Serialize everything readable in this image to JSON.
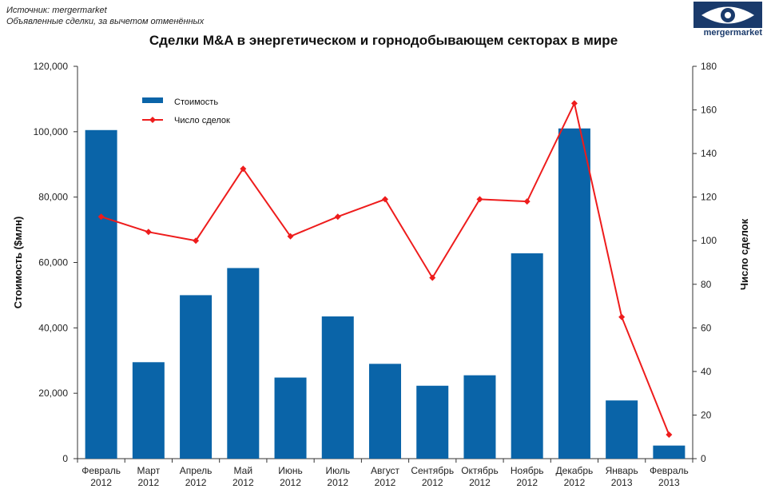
{
  "source": {
    "line1": "Источник: mergermarket",
    "line2": "Объявленные сделки, за вычетом отменённых"
  },
  "logo": {
    "text": "mergermarket",
    "icon": "eye-logo-icon"
  },
  "colors": {
    "bar": "#0a64a8",
    "line": "#ee1c1c",
    "logo": "#1a3a6b"
  },
  "chart_data": {
    "type": "bar",
    "title": "Сделки M&A в энергетическом и горнодобывающем секторах в мире",
    "ylabel": "Стоимость ($млн)",
    "y2label": "Число сделок",
    "ylim": [
      0,
      120000
    ],
    "y2lim": [
      0,
      180
    ],
    "yticks": [
      "0",
      "20,000",
      "40,000",
      "60,000",
      "80,000",
      "100,000",
      "120,000"
    ],
    "y2ticks": [
      "0",
      "20",
      "40",
      "60",
      "80",
      "100",
      "120",
      "140",
      "160",
      "180"
    ],
    "legend_position": "top-left",
    "categories": [
      [
        "Февраль",
        "2012"
      ],
      [
        "Март",
        "2012"
      ],
      [
        "Апрель",
        "2012"
      ],
      [
        "Май",
        "2012"
      ],
      [
        "Июнь",
        "2012"
      ],
      [
        "Июль",
        "2012"
      ],
      [
        "Август",
        "2012"
      ],
      [
        "Сентябрь",
        "2012"
      ],
      [
        "Октябрь",
        "2012"
      ],
      [
        "Ноябрь",
        "2012"
      ],
      [
        "Декабрь",
        "2012"
      ],
      [
        "Январь",
        "2013"
      ],
      [
        "Февраль",
        "2013"
      ]
    ],
    "series": [
      {
        "name": "Стоимость",
        "type": "bar",
        "axis": "left",
        "values": [
          100500,
          29500,
          50000,
          58300,
          24800,
          43500,
          29000,
          22300,
          25500,
          62800,
          101000,
          17800,
          4000
        ]
      },
      {
        "name": "Число сделок",
        "type": "line",
        "axis": "right",
        "values": [
          111,
          104,
          100,
          133,
          102,
          111,
          119,
          83,
          119,
          118,
          163,
          65,
          11
        ]
      }
    ]
  }
}
